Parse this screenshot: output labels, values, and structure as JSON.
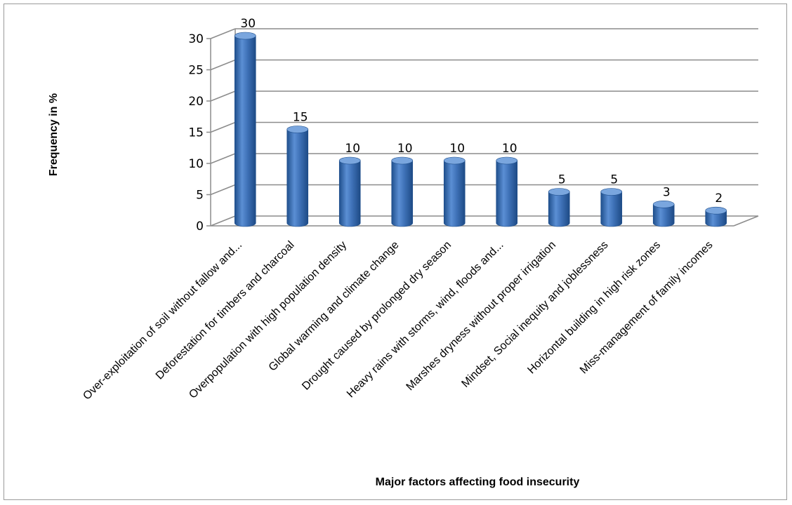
{
  "chart_data": {
    "type": "bar",
    "title": "",
    "xlabel": "Major factors affecting food insecurity",
    "ylabel": "Frequency in %",
    "ylim": [
      0,
      30
    ],
    "yticks": [
      0,
      5,
      10,
      15,
      20,
      25,
      30
    ],
    "grid": true,
    "style": "3d-cylinder",
    "colors": {
      "bar": "#3f72b8",
      "bar_dark": "#1f4f8c",
      "bar_light": "#7aa6de",
      "grid": "#8c8c8c"
    },
    "categories": [
      "Over-exploitation of soil without fallow and...",
      "Deforestation for timbers and charcoal",
      "Overpopulation with high population density",
      "Global warming and climate change",
      "Drought caused by prolonged dry season",
      "Heavy rains with storms, wind, floods and...",
      "Marshes dryness without proper irrigation",
      "Mindset, Social inequity and joblessness",
      "Horizontal building in high risk zones",
      "Miss-management of family incomes"
    ],
    "values": [
      30,
      15,
      10,
      10,
      10,
      10,
      5,
      5,
      3,
      2
    ]
  }
}
